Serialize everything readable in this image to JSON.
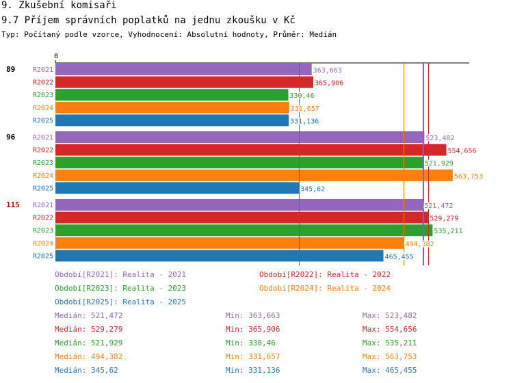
{
  "header": {
    "section": "9. Zkušební komisaři",
    "title": "9.7 Příjem správních poplatků na jednu zkoušku v Kč",
    "subtitle": "Typ: Počítaný podle vzorce, Vyhodnocení: Absolutní hodnoty, Průměr: Medián"
  },
  "colors": {
    "R2021": "#9467bd",
    "R2022": "#d62728",
    "R2023": "#2ca02c",
    "R2024": "#ff7f0e",
    "R2025": "#1f77b4",
    "highlight_group": "#cc0000"
  },
  "chart_data": {
    "type": "bar",
    "orientation": "horizontal",
    "x_tick_label": "0",
    "xlim": [
      0,
      600
    ],
    "groups": [
      {
        "label": "89",
        "highlight": false,
        "bars": [
          {
            "series": "R2021",
            "value": 363.663,
            "label": "363,663"
          },
          {
            "series": "R2022",
            "value": 365.906,
            "label": "365,906"
          },
          {
            "series": "R2023",
            "value": 330.46,
            "label": "330,46"
          },
          {
            "series": "R2024",
            "value": 331.657,
            "label": "331,657"
          },
          {
            "series": "R2025",
            "value": 331.136,
            "label": "331,136"
          }
        ]
      },
      {
        "label": "96",
        "highlight": false,
        "bars": [
          {
            "series": "R2021",
            "value": 523.482,
            "label": "523,482"
          },
          {
            "series": "R2022",
            "value": 554.656,
            "label": "554,656"
          },
          {
            "series": "R2023",
            "value": 521.929,
            "label": "521,929"
          },
          {
            "series": "R2024",
            "value": 563.753,
            "label": "563,753"
          },
          {
            "series": "R2025",
            "value": 345.62,
            "label": "345,62"
          }
        ]
      },
      {
        "label": "115",
        "highlight": true,
        "bars": [
          {
            "series": "R2021",
            "value": 521.472,
            "label": "521,472"
          },
          {
            "series": "R2022",
            "value": 529.279,
            "label": "529,279"
          },
          {
            "series": "R2023",
            "value": 535.211,
            "label": "535,211"
          },
          {
            "series": "R2024",
            "value": 494.382,
            "label": "494,382"
          },
          {
            "series": "R2025",
            "value": 465.455,
            "label": "465,455"
          }
        ]
      }
    ],
    "median_lines": [
      {
        "series": "R2021",
        "value": 521.472
      },
      {
        "series": "R2022",
        "value": 529.279
      },
      {
        "series": "R2023",
        "value": 521.929
      },
      {
        "series": "R2024",
        "value": 494.382
      },
      {
        "series": "R2025",
        "value": 345.62
      }
    ]
  },
  "legend": {
    "periods": [
      {
        "series": "R2021",
        "text": "Období[R2021]: Realita - 2021"
      },
      {
        "series": "R2022",
        "text": "Období[R2022]: Realita - 2022"
      },
      {
        "series": "R2023",
        "text": "Období[R2023]: Realita - 2023"
      },
      {
        "series": "R2024",
        "text": "Období[R2024]: Realita - 2024"
      },
      {
        "series": "R2025",
        "text": "Období[R2025]: Realita - 2025"
      }
    ],
    "stats": [
      {
        "series": "R2021",
        "median": "Medián: 521,472",
        "min": "Min: 363,663",
        "max": "Max: 523,482"
      },
      {
        "series": "R2022",
        "median": "Medián: 529,279",
        "min": "Min: 365,906",
        "max": "Max: 554,656"
      },
      {
        "series": "R2023",
        "median": "Medián: 521,929",
        "min": "Min: 330,46",
        "max": "Max: 535,211"
      },
      {
        "series": "R2024",
        "median": "Medián: 494,382",
        "min": "Min: 331,657",
        "max": "Max: 563,753"
      },
      {
        "series": "R2025",
        "median": "Medián: 345,62",
        "min": "Min: 331,136",
        "max": "Max: 465,455"
      }
    ]
  }
}
